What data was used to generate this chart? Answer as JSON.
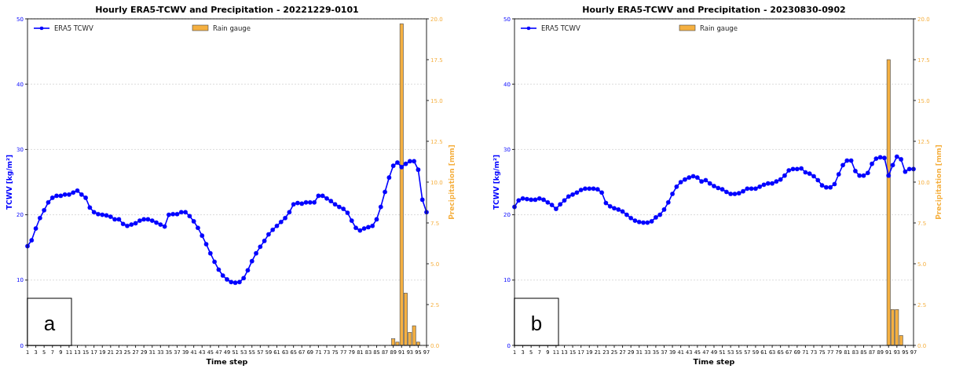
{
  "chart_data": [
    {
      "type": "line",
      "title": "Hourly ERA5-TCWV and Precipitation - 20221229-0101",
      "xlabel": "Time step",
      "ylabel": "TCWV [kg/m²]",
      "y2label": "Precipitation [mm]",
      "x": [
        1,
        2,
        3,
        4,
        5,
        6,
        7,
        8,
        9,
        10,
        11,
        12,
        13,
        14,
        15,
        16,
        17,
        18,
        19,
        20,
        21,
        22,
        23,
        24,
        25,
        26,
        27,
        28,
        29,
        30,
        31,
        32,
        33,
        34,
        35,
        36,
        37,
        38,
        39,
        40,
        41,
        42,
        43,
        44,
        45,
        46,
        47,
        48,
        49,
        50,
        51,
        52,
        53,
        54,
        55,
        56,
        57,
        58,
        59,
        60,
        61,
        62,
        63,
        64,
        65,
        66,
        67,
        68,
        69,
        70,
        71,
        72,
        73,
        74,
        75,
        76,
        77,
        78,
        79,
        80,
        81,
        82,
        83,
        84,
        85,
        86,
        87,
        88,
        89,
        90,
        91,
        92,
        93,
        94,
        95,
        96,
        97
      ],
      "xlim": [
        1,
        97
      ],
      "xticks": [
        1,
        3,
        5,
        7,
        9,
        11,
        13,
        15,
        17,
        19,
        21,
        23,
        25,
        27,
        29,
        31,
        33,
        35,
        37,
        39,
        41,
        43,
        45,
        47,
        49,
        51,
        53,
        55,
        57,
        59,
        61,
        63,
        65,
        67,
        69,
        71,
        73,
        75,
        77,
        79,
        81,
        83,
        85,
        87,
        89,
        91,
        93,
        95,
        97
      ],
      "ylim": [
        0,
        50
      ],
      "yticks": [
        0,
        10,
        20,
        30,
        40,
        50
      ],
      "y2lim": [
        0,
        20
      ],
      "y2ticks": [
        {
          "value": 0,
          "label": "0.0"
        },
        {
          "value": 2.5,
          "label": "2.5"
        },
        {
          "value": 5,
          "label": "5.0"
        },
        {
          "value": 7.5,
          "label": "7.5"
        },
        {
          "value": 10,
          "label": "10.0"
        },
        {
          "value": 12.5,
          "label": "12.5"
        },
        {
          "value": 15,
          "label": "15.0"
        },
        {
          "value": 17.5,
          "label": "17.5"
        },
        {
          "value": 20,
          "label": "20.0"
        }
      ],
      "grid": "y",
      "legend": "top",
      "marker": "circle",
      "annotations": [
        "a"
      ],
      "series": [
        {
          "name": "ERA5 TCWV",
          "color": "#0000ff",
          "values": [
            15.2,
            16.1,
            17.9,
            19.5,
            20.7,
            21.9,
            22.6,
            22.9,
            22.9,
            23.1,
            23.1,
            23.4,
            23.7,
            23.1,
            22.6,
            21.1,
            20.4,
            20.1,
            20.0,
            19.9,
            19.7,
            19.3,
            19.3,
            18.6,
            18.3,
            18.5,
            18.7,
            19.1,
            19.3,
            19.3,
            19.1,
            18.8,
            18.5,
            18.2,
            20.0,
            20.1,
            20.1,
            20.4,
            20.4,
            19.8,
            19.0,
            18.0,
            16.8,
            15.5,
            14.1,
            12.8,
            11.6,
            10.7,
            10.1,
            9.7,
            9.6,
            9.7,
            10.3,
            11.5,
            12.9,
            14.1,
            15.1,
            16.0,
            17.0,
            17.7,
            18.3,
            18.9,
            19.5,
            20.4,
            21.6,
            21.8,
            21.7,
            21.9,
            21.9,
            21.9,
            22.9,
            22.9,
            22.5,
            22.1,
            21.6,
            21.2,
            20.9,
            20.3,
            19.1,
            18.0,
            17.6,
            17.9,
            18.1,
            18.3,
            19.3,
            21.2,
            23.5,
            25.7,
            27.5,
            28.0,
            27.3,
            27.8,
            28.2,
            28.2,
            26.9,
            22.3,
            20.4
          ]
        },
        {
          "name": "Rain gauge",
          "type": "bar",
          "axis": "y2",
          "color": "#f5b041",
          "x": [
            89,
            90,
            91,
            92,
            93,
            94,
            95
          ],
          "values": [
            0.4,
            0.2,
            19.7,
            3.2,
            0.8,
            1.2,
            0.2
          ]
        }
      ]
    },
    {
      "type": "line",
      "title": "Hourly ERA5-TCWV and Precipitation - 20230830-0902",
      "xlabel": "Time step",
      "ylabel": "TCWV [kg/m²]",
      "y2label": "Precipitation [mm]",
      "x": [
        1,
        2,
        3,
        4,
        5,
        6,
        7,
        8,
        9,
        10,
        11,
        12,
        13,
        14,
        15,
        16,
        17,
        18,
        19,
        20,
        21,
        22,
        23,
        24,
        25,
        26,
        27,
        28,
        29,
        30,
        31,
        32,
        33,
        34,
        35,
        36,
        37,
        38,
        39,
        40,
        41,
        42,
        43,
        44,
        45,
        46,
        47,
        48,
        49,
        50,
        51,
        52,
        53,
        54,
        55,
        56,
        57,
        58,
        59,
        60,
        61,
        62,
        63,
        64,
        65,
        66,
        67,
        68,
        69,
        70,
        71,
        72,
        73,
        74,
        75,
        76,
        77,
        78,
        79,
        80,
        81,
        82,
        83,
        84,
        85,
        86,
        87,
        88,
        89,
        90,
        91,
        92,
        93,
        94,
        95,
        96,
        97
      ],
      "xlim": [
        1,
        97
      ],
      "xticks": [
        1,
        3,
        5,
        7,
        9,
        11,
        13,
        15,
        17,
        19,
        21,
        23,
        25,
        27,
        29,
        31,
        33,
        35,
        37,
        39,
        41,
        43,
        45,
        47,
        49,
        51,
        53,
        55,
        57,
        59,
        61,
        63,
        65,
        67,
        69,
        71,
        73,
        75,
        77,
        79,
        81,
        83,
        85,
        87,
        89,
        91,
        93,
        95,
        97
      ],
      "ylim": [
        0,
        50
      ],
      "yticks": [
        0,
        10,
        20,
        30,
        40,
        50
      ],
      "y2lim": [
        0,
        20
      ],
      "y2ticks": [
        {
          "value": 0,
          "label": "0.0"
        },
        {
          "value": 2.5,
          "label": "2.5"
        },
        {
          "value": 5,
          "label": "5.0"
        },
        {
          "value": 7.5,
          "label": "7.5"
        },
        {
          "value": 10,
          "label": "10.0"
        },
        {
          "value": 12.5,
          "label": "12.5"
        },
        {
          "value": 15,
          "label": "15.0"
        },
        {
          "value": 17.5,
          "label": "17.5"
        },
        {
          "value": 20,
          "label": "20.0"
        }
      ],
      "grid": "y",
      "legend": "top",
      "marker": "circle",
      "annotations": [
        "b"
      ],
      "series": [
        {
          "name": "ERA5 TCWV",
          "color": "#0000ff",
          "values": [
            21.2,
            22.2,
            22.5,
            22.4,
            22.3,
            22.3,
            22.5,
            22.3,
            21.9,
            21.5,
            20.9,
            21.6,
            22.2,
            22.8,
            23.1,
            23.4,
            23.8,
            24.0,
            24.0,
            24.0,
            23.9,
            23.4,
            21.8,
            21.3,
            21.0,
            20.8,
            20.5,
            20.0,
            19.5,
            19.1,
            18.9,
            18.8,
            18.8,
            19.0,
            19.6,
            20.0,
            20.8,
            21.9,
            23.2,
            24.3,
            25.0,
            25.4,
            25.7,
            25.9,
            25.7,
            25.1,
            25.3,
            24.8,
            24.4,
            24.1,
            23.9,
            23.5,
            23.2,
            23.2,
            23.3,
            23.6,
            24.0,
            24.0,
            24.0,
            24.3,
            24.6,
            24.8,
            24.8,
            25.1,
            25.4,
            26.0,
            26.8,
            27.0,
            27.0,
            27.1,
            26.5,
            26.3,
            25.9,
            25.3,
            24.5,
            24.2,
            24.2,
            24.7,
            26.2,
            27.6,
            28.3,
            28.3,
            26.7,
            26.0,
            26.0,
            26.4,
            27.8,
            28.6,
            28.8,
            28.7,
            26.0,
            27.6,
            28.9,
            28.5,
            26.6,
            27.0,
            27.0
          ]
        },
        {
          "name": "Rain gauge",
          "type": "bar",
          "axis": "y2",
          "color": "#f5b041",
          "x": [
            91,
            92,
            93,
            94
          ],
          "values": [
            17.5,
            2.2,
            2.2,
            0.6
          ]
        }
      ]
    }
  ]
}
